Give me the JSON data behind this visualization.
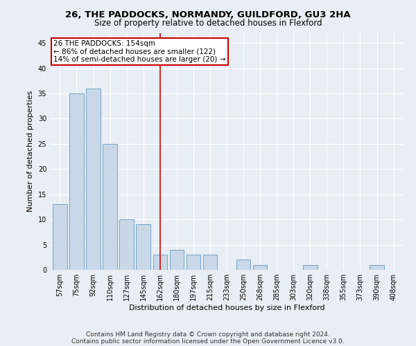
{
  "title1": "26, THE PADDOCKS, NORMANDY, GUILDFORD, GU3 2HA",
  "title2": "Size of property relative to detached houses in Flexford",
  "xlabel": "Distribution of detached houses by size in Flexford",
  "ylabel": "Number of detached properties",
  "categories": [
    "57sqm",
    "75sqm",
    "92sqm",
    "110sqm",
    "127sqm",
    "145sqm",
    "162sqm",
    "180sqm",
    "197sqm",
    "215sqm",
    "233sqm",
    "250sqm",
    "268sqm",
    "285sqm",
    "303sqm",
    "320sqm",
    "338sqm",
    "355sqm",
    "373sqm",
    "390sqm",
    "408sqm"
  ],
  "values": [
    13,
    35,
    36,
    25,
    10,
    9,
    3,
    4,
    3,
    3,
    0,
    2,
    1,
    0,
    0,
    1,
    0,
    0,
    0,
    1,
    0
  ],
  "bar_color": "#c8d8e8",
  "bar_edge_color": "#6699bb",
  "highlight_index": 6,
  "highlight_color": "#cc0000",
  "annotation_line1": "26 THE PADDOCKS: 154sqm",
  "annotation_line2": "← 86% of detached houses are smaller (122)",
  "annotation_line3": "14% of semi-detached houses are larger (20) →",
  "annotation_box_color": "#ffffff",
  "annotation_box_edge_color": "#cc0000",
  "ylim": [
    0,
    47
  ],
  "yticks": [
    0,
    5,
    10,
    15,
    20,
    25,
    30,
    35,
    40,
    45
  ],
  "footnote1": "Contains HM Land Registry data © Crown copyright and database right 2024.",
  "footnote2": "Contains public sector information licensed under the Open Government Licence v3.0.",
  "background_color": "#e8eef5",
  "plot_background_color": "#e8eef5",
  "grid_color": "#ffffff",
  "title_fontsize": 9.5,
  "subtitle_fontsize": 8.5,
  "axis_label_fontsize": 8,
  "tick_fontsize": 7,
  "annotation_fontsize": 7.5,
  "footnote_fontsize": 6.5
}
